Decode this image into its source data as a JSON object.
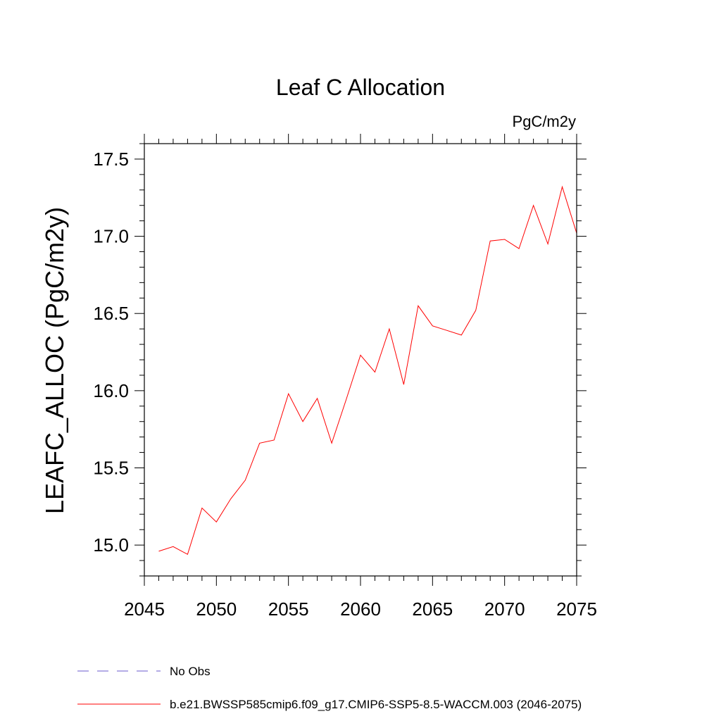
{
  "chart_data": {
    "type": "line",
    "title": "Leaf C Allocation",
    "units_label": "PgC/m2y",
    "ylabel": "LEAFC_ALLOC  (PgC/m2y)",
    "xlabel": "",
    "xlim": [
      2045,
      2075
    ],
    "ylim": [
      14.8,
      17.6
    ],
    "x_ticks": [
      2045,
      2050,
      2055,
      2060,
      2065,
      2070,
      2075
    ],
    "x_tick_labels": [
      "2045",
      "2050",
      "2055",
      "2060",
      "2065",
      "2070",
      "2075"
    ],
    "y_ticks": [
      15.0,
      15.5,
      16.0,
      16.5,
      17.0,
      17.5
    ],
    "y_tick_labels": [
      "15.0",
      "15.5",
      "16.0",
      "16.5",
      "17.0",
      "17.5"
    ],
    "grid": false,
    "legend_position": "bottom",
    "series": [
      {
        "name": "b.e21.BWSSP585cmip6.f09_g17.CMIP6-SSP5-8.5-WACCM.003 (2046-2075)",
        "color": "#ff0000",
        "style": "solid",
        "x": [
          2046,
          2047,
          2048,
          2049,
          2050,
          2051,
          2052,
          2053,
          2054,
          2055,
          2056,
          2057,
          2058,
          2059,
          2060,
          2061,
          2062,
          2063,
          2064,
          2065,
          2066,
          2067,
          2068,
          2069,
          2070,
          2071,
          2072,
          2073,
          2074,
          2075
        ],
        "y": [
          14.96,
          14.99,
          14.94,
          15.24,
          15.15,
          15.3,
          15.42,
          15.66,
          15.68,
          15.98,
          15.8,
          15.95,
          15.66,
          15.94,
          16.23,
          16.12,
          16.4,
          16.04,
          16.55,
          16.42,
          16.39,
          16.36,
          16.52,
          16.97,
          16.98,
          16.92,
          17.2,
          16.95,
          17.32,
          17.02
        ]
      },
      {
        "name": "No Obs",
        "color": "#6a5acd",
        "style": "dashed",
        "x": [],
        "y": []
      }
    ]
  }
}
